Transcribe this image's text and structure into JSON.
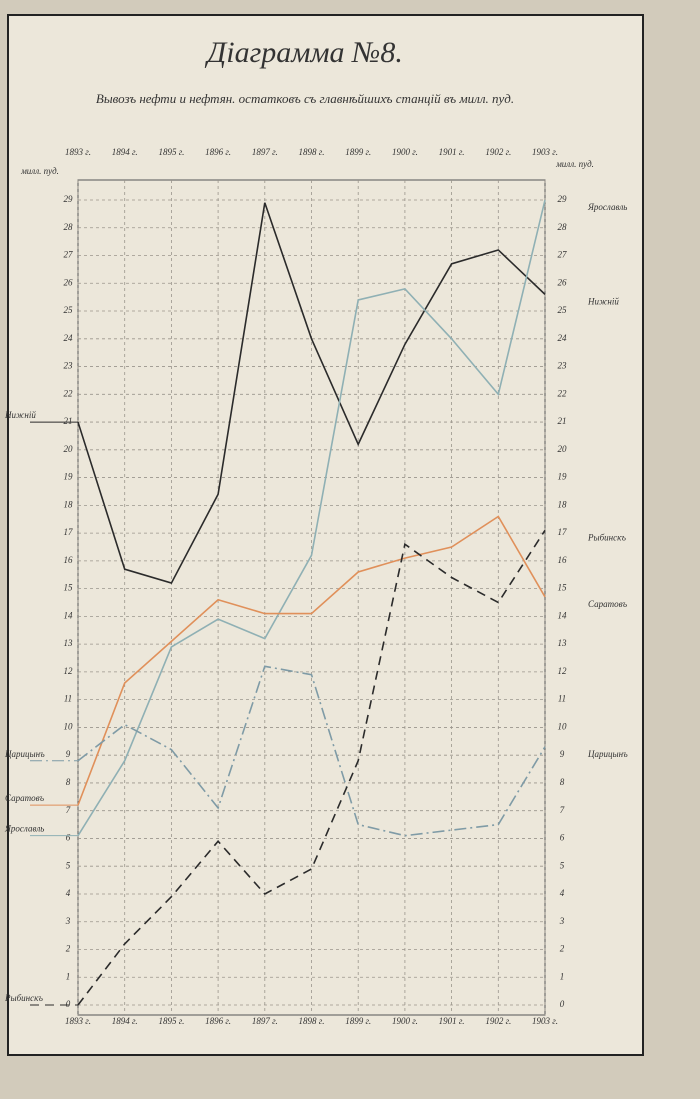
{
  "chart_data": {
    "type": "line",
    "title": "Діаграмма №8.",
    "subtitle": "Вывозъ нефти и нефтян. остатковъ съ главнѣйшихъ станцій въ милл. пуд.",
    "y_label": "милл. пуд.",
    "categories": [
      "1893 г.",
      "1894 г.",
      "1895 г.",
      "1896 г.",
      "1897 г.",
      "1898 г.",
      "1899 г.",
      "1900 г.",
      "1901 г.",
      "1902 г.",
      "1903 г."
    ],
    "ylim": [
      0,
      29
    ],
    "yticks": [
      0,
      1,
      2,
      3,
      4,
      5,
      6,
      7,
      8,
      9,
      10,
      11,
      12,
      13,
      14,
      15,
      16,
      17,
      18,
      19,
      20,
      21,
      22,
      23,
      24,
      25,
      26,
      27,
      28,
      29
    ],
    "grid": true,
    "series": [
      {
        "name": "Нижній",
        "color": "#2b2b2b",
        "linestyle": "solid",
        "values": [
          21,
          15.7,
          15.2,
          18.4,
          28.9,
          24,
          20.2,
          23.8,
          26.7,
          27.2,
          25.6
        ]
      },
      {
        "name": "Ярославль",
        "color": "#8fb0b4",
        "linestyle": "solid",
        "values": [
          6.1,
          8.8,
          12.9,
          13.9,
          13.2,
          16.2,
          25.4,
          25.8,
          24,
          22,
          29
        ]
      },
      {
        "name": "Саратовъ",
        "color": "#e0905a",
        "linestyle": "solid",
        "values": [
          7.2,
          11.6,
          13.1,
          14.6,
          14.1,
          14.1,
          15.6,
          16.1,
          16.5,
          17.6,
          14.7
        ]
      },
      {
        "name": "Царицынъ",
        "color": "#7f9ba6",
        "linestyle": "dashdot",
        "values": [
          8.8,
          10.1,
          9.2,
          7.1,
          12.2,
          11.9,
          6.5,
          6.1,
          6.3,
          6.5,
          9.3
        ]
      },
      {
        "name": "Рыбинскъ",
        "color": "#2b2b2b",
        "linestyle": "dashed",
        "values": [
          0,
          2.2,
          3.9,
          5.9,
          4,
          4.9,
          8.8,
          16.6,
          15.4,
          14.5,
          17.1
        ]
      }
    ]
  }
}
